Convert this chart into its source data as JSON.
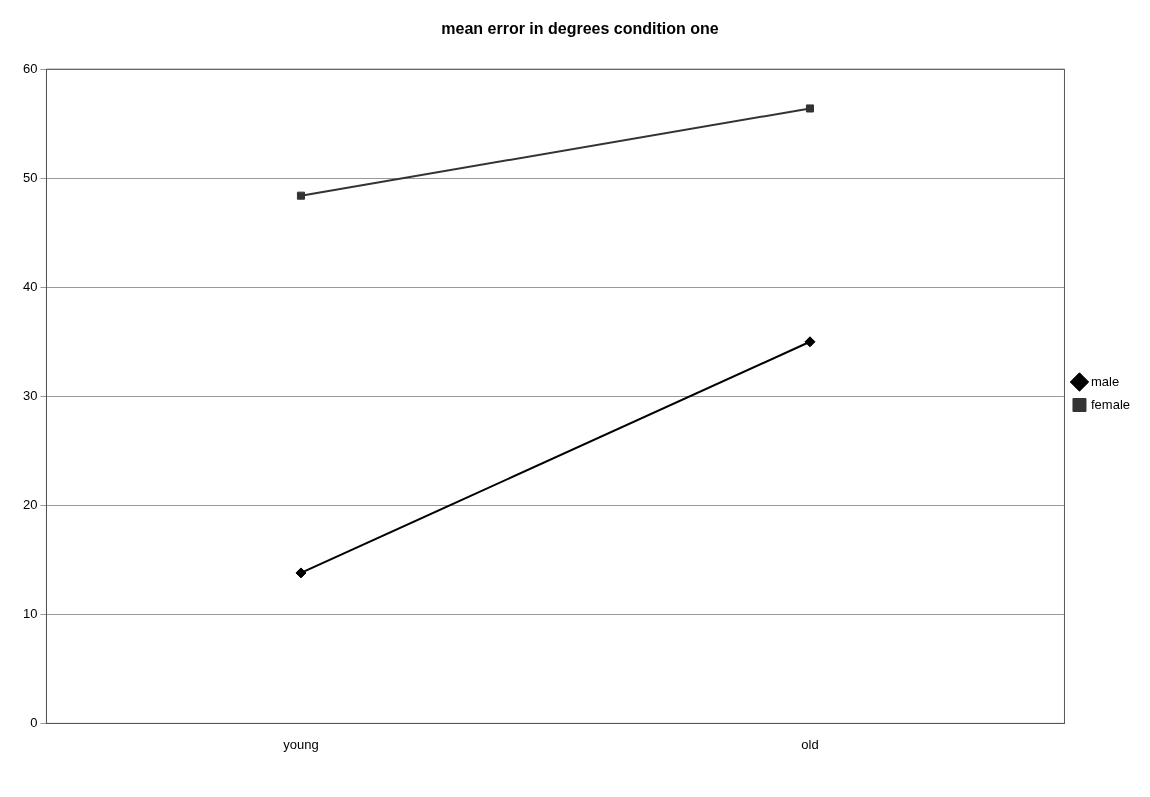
{
  "chart_data": {
    "type": "line",
    "title": "mean error in degrees condition one",
    "categories": [
      "young",
      "old"
    ],
    "series": [
      {
        "name": "male",
        "color": "#000000",
        "marker": "diamond",
        "values": [
          13.8,
          35
        ]
      },
      {
        "name": "female",
        "color": "#333333",
        "marker": "square",
        "values": [
          48.4,
          56.4
        ]
      }
    ],
    "ylim": [
      0,
      60
    ],
    "yticks": [
      0,
      10,
      20,
      30,
      40,
      50,
      60
    ],
    "grid": "y",
    "legend": "right",
    "line_style": "solid"
  }
}
